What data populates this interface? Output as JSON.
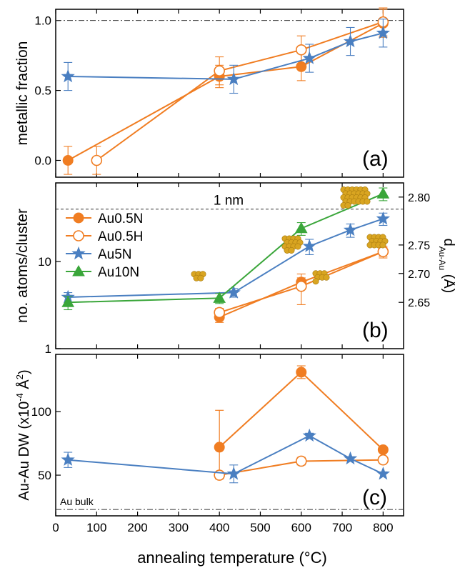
{
  "colors": {
    "Au0.5N": "#f07d22",
    "Au0.5H": "#f07d22",
    "Au5N": "#4a7fc1",
    "Au10N": "#3aa63a",
    "cluster": "#d9a521"
  },
  "xaxis": {
    "label": "annealing temperature (°C)",
    "ticks": [
      "0",
      "100",
      "200",
      "300",
      "400",
      "500",
      "600",
      "700",
      "800"
    ]
  },
  "chart_data": [
    {
      "panel": "a",
      "type": "line",
      "panel_label": "(a)",
      "ylabel": "metallic fraction",
      "xlim": [
        0,
        850
      ],
      "ylim": [
        -0.12,
        1.08
      ],
      "yticks": [
        "0.0",
        "0.5",
        "1.0"
      ],
      "yticks_values": [
        0,
        0.5,
        1.0
      ],
      "reference_line": {
        "y": 1.0,
        "label": ""
      },
      "grid": false,
      "series": [
        {
          "name": "Au0.5N",
          "marker": "filled-circle",
          "color": "#f07d22",
          "points": [
            [
              30,
              0.0,
              0.1
            ],
            [
              400,
              0.6,
              0.08
            ],
            [
              600,
              0.67,
              0.1
            ],
            [
              800,
              0.98,
              0.1
            ]
          ]
        },
        {
          "name": "Au0.5H",
          "marker": "open-circle",
          "color": "#f07d22",
          "points": [
            [
              100,
              0.0,
              0.1
            ],
            [
              400,
              0.64,
              0.1
            ],
            [
              600,
              0.79,
              0.1
            ],
            [
              800,
              0.99,
              0.1
            ]
          ]
        },
        {
          "name": "Au5N",
          "marker": "star",
          "color": "#4a7fc1",
          "points": [
            [
              30,
              0.6,
              0.1
            ],
            [
              435,
              0.58,
              0.1
            ],
            [
              620,
              0.73,
              0.1
            ],
            [
              720,
              0.85,
              0.1
            ],
            [
              800,
              0.91,
              0.1
            ]
          ]
        }
      ]
    },
    {
      "panel": "b",
      "type": "line",
      "panel_label": "(b)",
      "ylabel": "no. atoms/cluster",
      "yscale": "log",
      "ylim": [
        1,
        80
      ],
      "yticks": [
        "1",
        "10"
      ],
      "yticks_values": [
        1,
        10
      ],
      "right_axis": {
        "label_main": "d",
        "label_sub": "Au-Au",
        "label_unit": "(Å)",
        "ticks": [
          "2.65",
          "2.70",
          "2.75",
          "2.80"
        ],
        "tick_positions_atoms": [
          3.4,
          7.3,
          15.5,
          55
        ]
      },
      "reference_line": {
        "y": 40,
        "label": "1 nm"
      },
      "legend": {
        "position": "left-center"
      },
      "grid": false,
      "series": [
        {
          "name": "Au0.5N",
          "marker": "filled-circle",
          "color": "#f07d22",
          "points": [
            [
              400,
              2.3,
              0.3
            ],
            [
              600,
              5.8,
              0.7
            ],
            [
              800,
              13,
              2
            ]
          ]
        },
        {
          "name": "Au0.5H",
          "marker": "open-circle",
          "color": "#f07d22",
          "points": [
            [
              400,
              2.6,
              0.3
            ],
            [
              600,
              5.2,
              2
            ],
            [
              800,
              13,
              1.5
            ]
          ]
        },
        {
          "name": "Au5N",
          "marker": "star",
          "color": "#4a7fc1",
          "points": [
            [
              30,
              3.9,
              0.5
            ],
            [
              435,
              4.4,
              0.5
            ],
            [
              620,
              15,
              3
            ],
            [
              720,
              23,
              4
            ],
            [
              800,
              31,
              5
            ]
          ]
        },
        {
          "name": "Au10N",
          "marker": "triangle",
          "color": "#3aa63a",
          "points": [
            [
              30,
              3.4,
              0.6
            ],
            [
              400,
              3.8,
              0.5
            ],
            [
              600,
              24,
              4
            ],
            [
              800,
              60,
              10
            ]
          ]
        }
      ]
    },
    {
      "panel": "c",
      "type": "line",
      "panel_label": "(c)",
      "ylabel": "Au-Au DW (x10",
      "ylabel_sup": "-4",
      "ylabel_end": " Å",
      "ylabel_sup2": "2",
      "ylabel_close": ")",
      "ylim": [
        18,
        145
      ],
      "yticks": [
        "50",
        "100"
      ],
      "yticks_values": [
        50,
        100
      ],
      "reference_line": {
        "y": 23,
        "label": "Au bulk"
      },
      "grid": false,
      "series": [
        {
          "name": "Au0.5N",
          "marker": "filled-circle",
          "color": "#f07d22",
          "points": [
            [
              400,
              72,
              0
            ],
            [
              600,
              131,
              5
            ],
            [
              800,
              70,
              0
            ]
          ]
        },
        {
          "name": "Au0.5H",
          "marker": "open-circle",
          "color": "#f07d22",
          "points": [
            [
              400,
              50,
              0
            ],
            [
              600,
              61,
              3
            ],
            [
              800,
              62,
              0
            ]
          ]
        },
        {
          "name": "Au5N",
          "marker": "star",
          "color": "#4a7fc1",
          "points": [
            [
              30,
              62,
              6
            ],
            [
              435,
              51,
              7
            ],
            [
              620,
              81,
              2
            ],
            [
              720,
              63,
              0
            ],
            [
              800,
              51,
              0
            ]
          ]
        }
      ],
      "extra_errorbar": {
        "x": 400,
        "ylow": 47,
        "yhigh": 101,
        "color": "#f07d22"
      }
    }
  ]
}
